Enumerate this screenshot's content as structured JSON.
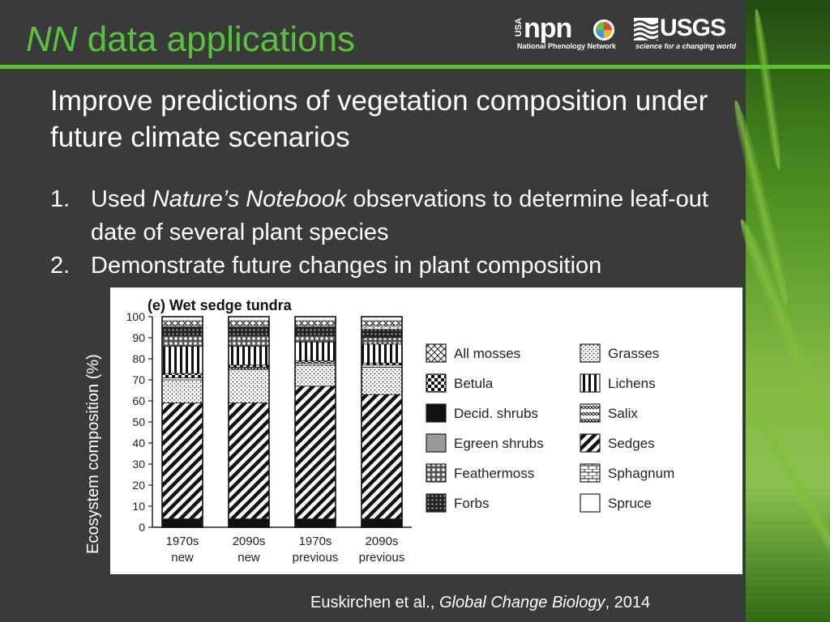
{
  "slide": {
    "title_em": "NN",
    "title_rest": "data applications",
    "subtitle": "Improve predictions of vegetation composition under future climate scenarios",
    "bullets": [
      {
        "num": "1.",
        "pre": "Used ",
        "ital": "Nature’s Notebook",
        "post": " observations to determine leaf-out date of several plant species"
      },
      {
        "num": "2.",
        "pre": "Demonstrate future changes in plant composition",
        "ital": "",
        "post": ""
      }
    ],
    "citation": {
      "pre": "Euskirchen et al., ",
      "ital": "Global Change Biology",
      "post": ", 2014"
    }
  },
  "logos": {
    "npn": {
      "usa": "USA",
      "word": "npn",
      "sub": "National Phenology Network"
    },
    "usgs": {
      "word": "USGS",
      "tag": "science for a changing world"
    }
  },
  "colors": {
    "title_green": "#58c23c",
    "rule_green": "#5fbf3a",
    "background": "#3a3a3a"
  },
  "chart_data": {
    "type": "bar",
    "stacked": true,
    "panel_title": "(e) Wet sedge tundra",
    "ylabel": "Ecosystem composition (%)",
    "ylim": [
      0,
      100
    ],
    "yticks": [
      0,
      10,
      20,
      30,
      40,
      50,
      60,
      70,
      80,
      90,
      100
    ],
    "categories": [
      "1970s new",
      "2090s new",
      "1970s previous",
      "2090s previous"
    ],
    "category_labels": [
      [
        "1970s",
        "new"
      ],
      [
        "2090s",
        "new"
      ],
      [
        "1970s",
        "previous"
      ],
      [
        "2090s",
        "previous"
      ]
    ],
    "series": [
      {
        "name": "Decid. shrubs",
        "pattern": "solid-black",
        "values": [
          4,
          4,
          4,
          4
        ]
      },
      {
        "name": "Sedges",
        "pattern": "diagonal-stripes",
        "values": [
          55,
          55,
          63,
          59
        ]
      },
      {
        "name": "Grasses",
        "pattern": "stipple",
        "values": [
          11,
          16,
          10,
          13
        ]
      },
      {
        "name": "Salix",
        "pattern": "weave",
        "values": [
          1,
          1,
          1,
          1
        ]
      },
      {
        "name": "Betula",
        "pattern": "checker",
        "values": [
          2,
          1,
          1,
          1
        ]
      },
      {
        "name": "Lichens",
        "pattern": "vertical-stripes",
        "values": [
          13,
          9,
          9,
          9
        ]
      },
      {
        "name": "Feathermoss",
        "pattern": "dotted-dark",
        "values": [
          5,
          5,
          3,
          3
        ]
      },
      {
        "name": "Forbs",
        "pattern": "dotted-heavy",
        "values": [
          4,
          4,
          4,
          4
        ]
      },
      {
        "name": "Sphagnum",
        "pattern": "brick",
        "values": [
          1,
          1,
          1,
          2
        ]
      },
      {
        "name": "All mosses",
        "pattern": "crosshatch",
        "values": [
          2,
          2,
          2,
          2
        ]
      },
      {
        "name": "Spruce",
        "pattern": "blank",
        "values": [
          2,
          2,
          2,
          2
        ]
      }
    ],
    "legend": {
      "placement": "right",
      "columns": [
        [
          "All mosses",
          "Betula",
          "Decid. shrubs",
          "Egreen shrubs",
          "Feathermoss",
          "Forbs"
        ],
        [
          "Grasses",
          "Lichens",
          "Salix",
          "Sedges",
          "Sphagnum",
          "Spruce"
        ]
      ]
    },
    "legend_only_patterns": {
      "Egreen shrubs": "solid-gray"
    }
  }
}
